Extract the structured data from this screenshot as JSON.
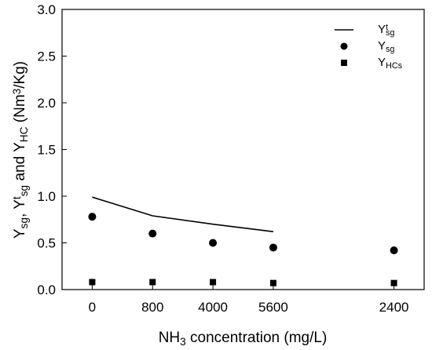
{
  "chart_data": {
    "type": "scatter",
    "title": "",
    "xlabel": {
      "base": "NH",
      "sub": "3",
      "rest": " concentration (mg/L)"
    },
    "ylabel": [
      {
        "t": "Y",
        "s": "normal"
      },
      {
        "t": "sg",
        "s": "sub"
      },
      {
        "t": ", Y",
        "s": "normal"
      },
      {
        "t": "t",
        "s": "sup"
      },
      {
        "t": "sg",
        "s": "sub"
      },
      {
        "t": " and Y",
        "s": "normal"
      },
      {
        "t": "HC",
        "s": "sub"
      },
      {
        "t": " (Nm",
        "s": "normal"
      },
      {
        "t": "3",
        "s": "sup"
      },
      {
        "t": "/Kg)",
        "s": "normal"
      }
    ],
    "categories": [
      "0",
      "800",
      "4000",
      "5600",
      "2400"
    ],
    "category_positions": [
      0,
      1,
      2,
      3,
      5
    ],
    "xlim": [
      -0.5,
      5.5
    ],
    "ylim": [
      0,
      3.0
    ],
    "yticks": [
      "0.0",
      "0.5",
      "1.0",
      "1.5",
      "2.0",
      "2.5",
      "3.0"
    ],
    "grid": false,
    "legend_position": "top-right",
    "series": [
      {
        "key": "yt_sg",
        "marker": "line",
        "legend": {
          "base": "Y",
          "sup": "t",
          "sub": "sg"
        },
        "values": [
          0.99,
          0.79,
          0.7,
          0.62
        ]
      },
      {
        "key": "y_sg",
        "marker": "circle",
        "legend": {
          "base": "Y",
          "sup": "",
          "sub": "sg"
        },
        "values": [
          0.78,
          0.6,
          0.5,
          0.45,
          0.42
        ]
      },
      {
        "key": "y_hcs",
        "marker": "square",
        "legend": {
          "base": "Y",
          "sup": "",
          "sub": "HCs"
        },
        "values": [
          0.08,
          0.08,
          0.08,
          0.07,
          0.07
        ]
      }
    ]
  }
}
